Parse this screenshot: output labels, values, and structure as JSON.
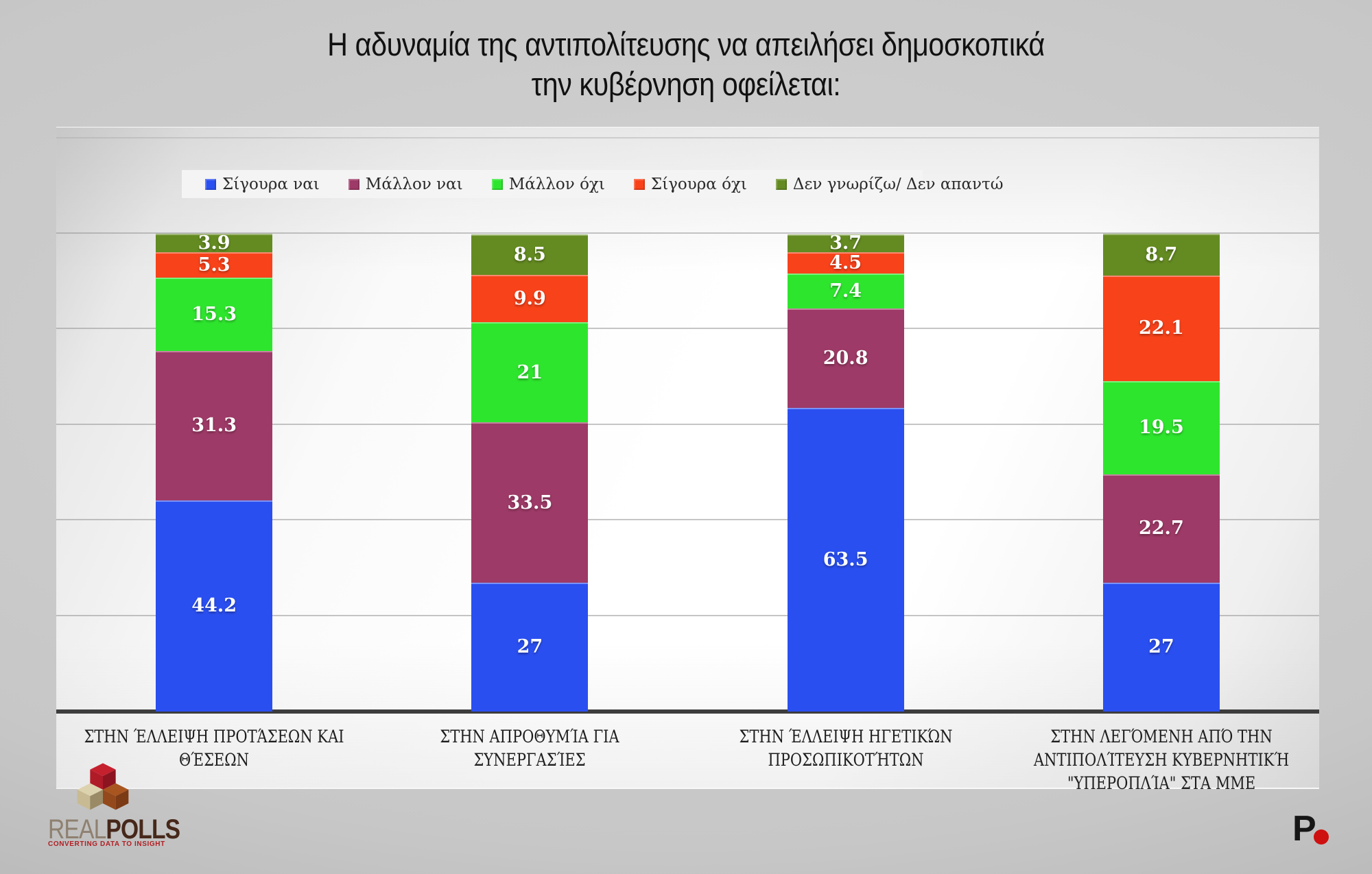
{
  "title": {
    "line1": "Η αδυναμία της αντιπολίτευσης να απειλήσει δημοσκοπικά",
    "line2": "την κυβέρνηση οφείλεται:"
  },
  "chart_data": {
    "type": "bar",
    "stacked": true,
    "title": "Η αδυναμία της αντιπολίτευσης να απειλήσει δημοσκοπικά την κυβέρνηση οφείλεται:",
    "categories": [
      "ΣΤΗΝ ΈΛΛΕΙΨΗ ΠΡΟΤΆΣΕΩΝ ΚΑΙ ΘΈΣΕΩΝ",
      "ΣΤΗΝ ΑΠΡΟΘΥΜΊΑ ΓΙΑ ΣΥΝΕΡΓΑΣΊΕΣ",
      "ΣΤΗΝ ΈΛΛΕΙΨΗ ΗΓΕΤΙΚΏΝ ΠΡΟΣΩΠΙΚΟΤΉΤΩΝ",
      "ΣΤΗΝ ΛΕΓΌΜΕΝΗ ΑΠΌ ΤΗΝ ΑΝΤΙΠΟΛΊΤΕΥΣΗ ΚΥΒΕΡΝΗΤΙΚΉ \"ΥΠΕΡΟΠΛΊΑ\" ΣΤΑ ΜΜΕ"
    ],
    "category_lines": [
      [
        "ΣΤΗΝ ΈΛΛΕΙΨΗ ΠΡΟΤΆΣΕΩΝ ΚΑΙ ΘΈΣΕΩΝ"
      ],
      [
        "ΣΤΗΝ ΑΠΡΟΘΥΜΊΑ ΓΙΑ ΣΥΝΕΡΓΑΣΊΕΣ"
      ],
      [
        "ΣΤΗΝ ΈΛΛΕΙΨΗ ΗΓΕΤΙΚΏΝ",
        "ΠΡΟΣΩΠΙΚΟΤΉΤΩΝ"
      ],
      [
        "ΣΤΗΝ ΛΕΓΌΜΕΝΗ ΑΠΌ ΤΗΝ",
        "ΑΝΤΙΠΟΛΊΤΕΥΣΗ ΚΥΒΕΡΝΗΤΙΚΉ",
        "\"ΥΠΕΡΟΠΛΊΑ\" ΣΤΑ ΜΜΕ"
      ]
    ],
    "series": [
      {
        "name": "Σίγουρα ναι",
        "color": "#2a4ff0",
        "values": [
          44.2,
          27,
          63.5,
          27
        ]
      },
      {
        "name": "Μάλλον ναι",
        "color": "#9e3a67",
        "values": [
          31.3,
          33.5,
          20.8,
          22.7
        ]
      },
      {
        "name": "Μάλλον όχι",
        "color": "#2ee52e",
        "values": [
          15.3,
          21,
          7.4,
          19.5
        ]
      },
      {
        "name": "Σίγουρα όχι",
        "color": "#f8421a",
        "values": [
          5.3,
          9.9,
          4.5,
          22.1
        ]
      },
      {
        "name": "Δεν γνωρίζω/ Δεν απαντώ",
        "color": "#648b21",
        "values": [
          3.9,
          8.5,
          3.7,
          8.7
        ]
      }
    ],
    "ylim": [
      0,
      120
    ],
    "gridline_step": 20,
    "grid": true,
    "legend_position": "top",
    "value_label_color": "#ffffff"
  },
  "footer": {
    "brand": {
      "name_light": "REAL",
      "name_bold": "POLLS",
      "tagline": "CONVERTING DATA TO INSIGHT"
    },
    "partner_logo": {
      "letter": "P"
    }
  }
}
